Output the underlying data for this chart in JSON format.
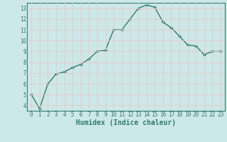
{
  "x": [
    0,
    1,
    2,
    3,
    4,
    5,
    6,
    7,
    8,
    9,
    10,
    11,
    12,
    13,
    14,
    15,
    16,
    17,
    18,
    19,
    20,
    21,
    22,
    23
  ],
  "y": [
    5.0,
    3.7,
    6.0,
    6.9,
    7.1,
    7.5,
    7.8,
    8.3,
    9.0,
    9.1,
    11.0,
    11.0,
    12.0,
    13.0,
    13.3,
    13.1,
    11.7,
    11.2,
    10.4,
    9.6,
    9.5,
    8.7,
    9.0,
    9.0
  ],
  "line_color": "#2e7d6e",
  "marker": "D",
  "marker_size": 2.0,
  "bg_color": "#cde8e8",
  "grid_color": "#b8d8d8",
  "xlabel": "Humidex (Indice chaleur)",
  "xlim": [
    -0.5,
    23.5
  ],
  "ylim": [
    3.5,
    13.5
  ],
  "yticks": [
    4,
    5,
    6,
    7,
    8,
    9,
    10,
    11,
    12,
    13
  ],
  "xticks": [
    0,
    1,
    2,
    3,
    4,
    5,
    6,
    7,
    8,
    9,
    10,
    11,
    12,
    13,
    14,
    15,
    16,
    17,
    18,
    19,
    20,
    21,
    22,
    23
  ],
  "tick_fontsize": 5.5,
  "xlabel_fontsize": 7.0,
  "line_width": 1.0
}
